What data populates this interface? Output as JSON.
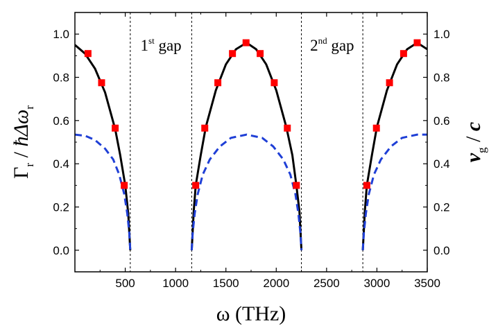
{
  "chart_data": {
    "type": "line",
    "title": "",
    "xlabel": "ω (THz)",
    "ylabel_left": "Γr / ħΔωr",
    "ylabel_right": "vg / c",
    "xlim": [
      0,
      3500
    ],
    "ylim_left": [
      -0.1,
      1.1
    ],
    "ylim_right": [
      -0.1,
      1.1
    ],
    "x_ticks": [
      500,
      1000,
      1500,
      2000,
      2500,
      3000,
      3500
    ],
    "y_ticks": [
      0.0,
      0.2,
      0.4,
      0.6,
      0.8,
      1.0
    ],
    "y_tick_labels": [
      "0.0",
      "0.2",
      "0.4",
      "0.6",
      "0.8",
      "1.0"
    ],
    "gap_lines_x": [
      550,
      1160,
      2250,
      2860
    ],
    "gap_labels": [
      {
        "base": "1",
        "sup": "st",
        "text": "gap",
        "x": 855
      },
      {
        "base": "2",
        "sup": "nd",
        "text": "gap",
        "x": 2555
      }
    ],
    "series": [
      {
        "name": "radiative rate Γr/ħΔωr (solid black)",
        "style": "solid",
        "color": "#000000",
        "bands": [
          {
            "x": [
              0,
              100,
              200,
              300,
              400,
              450,
              500,
              530,
              550
            ],
            "y": [
              0.95,
              0.91,
              0.84,
              0.73,
              0.56,
              0.44,
              0.3,
              0.17,
              0.0
            ]
          },
          {
            "x": [
              1160,
              1180,
              1200,
              1250,
              1300,
              1400,
              1500,
              1600,
              1705,
              1800,
              1900,
              2000,
              2100,
              2160,
              2200,
              2230,
              2250
            ],
            "y": [
              0.0,
              0.18,
              0.3,
              0.44,
              0.57,
              0.74,
              0.86,
              0.93,
              0.96,
              0.93,
              0.86,
              0.74,
              0.57,
              0.44,
              0.3,
              0.18,
              0.0
            ]
          },
          {
            "x": [
              2860,
              2880,
              2900,
              2950,
              3000,
              3100,
              3200,
              3300,
              3400,
              3500
            ],
            "y": [
              0.0,
              0.18,
              0.3,
              0.44,
              0.57,
              0.74,
              0.86,
              0.93,
              0.96,
              0.93
            ]
          }
        ]
      },
      {
        "name": "simulation points (red squares)",
        "style": "markers",
        "color": "#ff0000",
        "x": [
          130,
          265,
          400,
          490,
          1200,
          1290,
          1420,
          1565,
          1700,
          1840,
          1980,
          2110,
          2200,
          2900,
          2995,
          3125,
          3265,
          3400
        ],
        "y": [
          0.91,
          0.775,
          0.565,
          0.3,
          0.3,
          0.565,
          0.775,
          0.91,
          0.96,
          0.91,
          0.775,
          0.565,
          0.3,
          0.3,
          0.565,
          0.775,
          0.91,
          0.96
        ]
      },
      {
        "name": "group velocity vg/c (dashed blue)",
        "style": "dashed",
        "color": "#1f3fd6",
        "bands": [
          {
            "x": [
              0,
              100,
              200,
              300,
              380,
              440,
              490,
              520,
              540,
              550
            ],
            "y": [
              0.535,
              0.53,
              0.51,
              0.47,
              0.42,
              0.35,
              0.26,
              0.17,
              0.08,
              0.0
            ]
          },
          {
            "x": [
              1160,
              1170,
              1190,
              1220,
              1270,
              1340,
              1440,
              1550,
              1705,
              1860,
              1970,
              2070,
              2140,
              2190,
              2220,
              2240,
              2250
            ],
            "y": [
              0.0,
              0.08,
              0.17,
              0.26,
              0.35,
              0.42,
              0.48,
              0.52,
              0.535,
              0.52,
              0.48,
              0.42,
              0.35,
              0.26,
              0.17,
              0.08,
              0.0
            ]
          },
          {
            "x": [
              2860,
              2870,
              2890,
              2920,
              2970,
              3040,
              3140,
              3250,
              3400,
              3500
            ],
            "y": [
              0.0,
              0.08,
              0.17,
              0.26,
              0.35,
              0.42,
              0.48,
              0.52,
              0.535,
              0.535
            ]
          }
        ]
      }
    ]
  }
}
